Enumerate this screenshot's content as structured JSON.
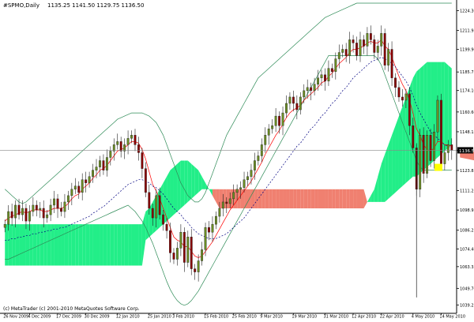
{
  "header": {
    "title": "#SPMO,Daily",
    "ohlc": "1135.25 1141.50 1129.75 1136.50"
  },
  "footer": {
    "copyright": "(c) MetaTrader (c) 2001-2010 MetaQuotes Software Corp."
  },
  "price_label": "1136.50",
  "colors": {
    "bull": "#111111",
    "bear": "#8b0000",
    "body_bull": "#6b8e23",
    "cloud_up": "#22ee88",
    "cloud_down": "#f08070",
    "bands": "#2e8b57",
    "ma_fast": "#ff0000",
    "ma_slow": "#000080",
    "grid": "#888888",
    "highlight": "#ffff00"
  },
  "chart_data": {
    "type": "candlestick",
    "title": "#SPMO,Daily",
    "symbol": "#SPMO",
    "timeframe": "Daily",
    "last_price": 1136.5,
    "y_ticks": [
      1224.3,
      1211.95,
      1199.9,
      1185.75,
      1174.1,
      1160.6,
      1148.15,
      1136.5,
      1123.85,
      1111.25,
      1098.95,
      1086.25,
      1074.4,
      1063.35,
      1049.7,
      1039.25
    ],
    "y_tick_labels": [
      "1224.30",
      "1211.95",
      "1199.90",
      "1185.75",
      "1174.10",
      "1160.60",
      "1148.15",
      "1136.50",
      "1123.85",
      "1111.25",
      "1098.95",
      "1086.25",
      "1074.40",
      "1063.35",
      "1049.70",
      "1039.25"
    ],
    "ylim": [
      1034.0,
      1231.0
    ],
    "x_ticks": [
      {
        "label": "26 Nov 2009",
        "index": 0
      },
      {
        "label": "4 Dec 2009",
        "index": 7
      },
      {
        "label": "17 Dec 2009",
        "index": 15
      },
      {
        "label": "30 Dec 2009",
        "index": 23
      },
      {
        "label": "12 Jan 2010",
        "index": 32
      },
      {
        "label": "25 Jan 2010",
        "index": 41
      },
      {
        "label": "3 Feb 2010",
        "index": 48
      },
      {
        "label": "15 Feb 2010",
        "index": 57
      },
      {
        "label": "25 Feb 2010",
        "index": 65
      },
      {
        "label": "9 Mar 2010",
        "index": 73
      },
      {
        "label": "19 Mar 2010",
        "index": 82
      },
      {
        "label": "31 Mar 2010",
        "index": 91
      },
      {
        "label": "12 Apr 2010",
        "index": 99
      },
      {
        "label": "22 Apr 2010",
        "index": 107
      },
      {
        "label": "4 May 2010",
        "index": 116
      },
      {
        "label": "14 May 2010",
        "index": 124
      }
    ],
    "close": [
      1090,
      1098,
      1094,
      1102,
      1096,
      1100,
      1092,
      1098,
      1102,
      1099,
      1100,
      1094,
      1096,
      1102,
      1106,
      1100,
      1098,
      1104,
      1108,
      1112,
      1114,
      1110,
      1118,
      1116,
      1120,
      1124,
      1126,
      1130,
      1124,
      1132,
      1136,
      1140,
      1142,
      1136,
      1140,
      1144,
      1146,
      1140,
      1135,
      1125,
      1110,
      1100,
      1094,
      1108,
      1096,
      1090,
      1086,
      1072,
      1068,
      1075,
      1085,
      1066,
      1082,
      1062,
      1060,
      1067,
      1074,
      1088,
      1085,
      1090,
      1095,
      1100,
      1104,
      1103,
      1106,
      1110,
      1112,
      1113,
      1118,
      1120,
      1124,
      1130,
      1133,
      1140,
      1146,
      1150,
      1152,
      1158,
      1152,
      1160,
      1166,
      1170,
      1166,
      1162,
      1170,
      1174,
      1176,
      1174,
      1178,
      1182,
      1184,
      1180,
      1188,
      1186,
      1194,
      1198,
      1200,
      1196,
      1206,
      1204,
      1196,
      1206,
      1202,
      1210,
      1206,
      1198,
      1202,
      1210,
      1190,
      1200,
      1182,
      1176,
      1170,
      1168,
      1172,
      1152,
      1138,
      1112,
      1146,
      1122,
      1146,
      1130,
      1148,
      1168,
      1128,
      1135,
      1140,
      1136.5
    ],
    "ma_fast": [
      1092,
      1094,
      1095,
      1096,
      1097,
      1098,
      1097,
      1098,
      1099,
      1099,
      1099,
      1098,
      1098,
      1099,
      1100,
      1100,
      1100,
      1101,
      1103,
      1106,
      1108,
      1109,
      1112,
      1114,
      1116,
      1119,
      1121,
      1124,
      1125,
      1127,
      1130,
      1133,
      1136,
      1137,
      1138,
      1140,
      1142,
      1142,
      1141,
      1137,
      1131,
      1123,
      1115,
      1111,
      1106,
      1100,
      1094,
      1088,
      1082,
      1080,
      1079,
      1076,
      1076,
      1073,
      1070,
      1069,
      1070,
      1073,
      1076,
      1079,
      1083,
      1087,
      1091,
      1095,
      1099,
      1102,
      1105,
      1108,
      1111,
      1114,
      1117,
      1121,
      1125,
      1129,
      1134,
      1138,
      1142,
      1146,
      1149,
      1153,
      1157,
      1160,
      1162,
      1163,
      1165,
      1168,
      1170,
      1172,
      1174,
      1176,
      1179,
      1180,
      1183,
      1185,
      1188,
      1191,
      1193,
      1195,
      1198,
      1200,
      1200,
      1201,
      1202,
      1204,
      1205,
      1204,
      1204,
      1206,
      1202,
      1200,
      1195,
      1189,
      1183,
      1178,
      1174,
      1168,
      1160,
      1150,
      1146,
      1140,
      1137,
      1136,
      1138,
      1142,
      1142,
      1140,
      1140,
      1139
    ],
    "ma_slow": [
      1080,
      1080,
      1081,
      1081,
      1082,
      1082,
      1083,
      1083,
      1084,
      1084,
      1085,
      1085,
      1086,
      1086,
      1087,
      1087,
      1088,
      1088,
      1089,
      1090,
      1091,
      1092,
      1093,
      1094,
      1095,
      1097,
      1098,
      1100,
      1101,
      1103,
      1105,
      1107,
      1109,
      1111,
      1113,
      1115,
      1116,
      1117,
      1118,
      1118,
      1117,
      1116,
      1114,
      1113,
      1111,
      1109,
      1106,
      1103,
      1100,
      1098,
      1096,
      1093,
      1091,
      1088,
      1086,
      1084,
      1083,
      1082,
      1081,
      1081,
      1081,
      1082,
      1083,
      1084,
      1086,
      1088,
      1090,
      1092,
      1094,
      1097,
      1100,
      1103,
      1106,
      1109,
      1112,
      1115,
      1118,
      1121,
      1124,
      1127,
      1130,
      1133,
      1136,
      1139,
      1141,
      1144,
      1147,
      1150,
      1152,
      1155,
      1158,
      1160,
      1163,
      1166,
      1168,
      1171,
      1174,
      1176,
      1179,
      1182,
      1184,
      1186,
      1188,
      1190,
      1192,
      1193,
      1194,
      1195,
      1194,
      1193,
      1191,
      1189,
      1186,
      1183,
      1180,
      1176,
      1171,
      1165,
      1160,
      1156,
      1152,
      1148,
      1146,
      1144,
      1142,
      1140,
      1139,
      1138
    ],
    "band_upper": [
      1112,
      1110,
      1108,
      1106,
      1104,
      1103,
      1104,
      1106,
      1108,
      1110,
      1112,
      1114,
      1116,
      1118,
      1120,
      1122,
      1124,
      1126,
      1128,
      1130,
      1132,
      1134,
      1136,
      1138,
      1140,
      1142,
      1144,
      1146,
      1148,
      1150,
      1152,
      1154,
      1156,
      1157,
      1158,
      1159,
      1160,
      1160,
      1160,
      1160,
      1159,
      1158,
      1156,
      1154,
      1150,
      1146,
      1140,
      1134,
      1128,
      1122,
      1116,
      1112,
      1108,
      1106,
      1104,
      1104,
      1106,
      1110,
      1116,
      1122,
      1128,
      1134,
      1140,
      1146,
      1150,
      1154,
      1158,
      1162,
      1166,
      1170,
      1174,
      1178,
      1182,
      1184,
      1186,
      1188,
      1190,
      1192,
      1194,
      1196,
      1198,
      1200,
      1202,
      1204,
      1206,
      1208,
      1210,
      1212,
      1214,
      1216,
      1218,
      1220,
      1221,
      1222,
      1223,
      1224,
      1225,
      1226,
      1227,
      1228,
      1229,
      1229,
      1229,
      1229,
      1229,
      1229,
      1229,
      1229,
      1229,
      1229,
      1229,
      1229,
      1229,
      1229,
      1229,
      1229,
      1229,
      1229,
      1229,
      1229,
      1229,
      1229,
      1229,
      1229,
      1229,
      1229,
      1229,
      1229
    ],
    "band_lower": [
      1068,
      1068,
      1069,
      1070,
      1071,
      1072,
      1073,
      1074,
      1075,
      1076,
      1077,
      1078,
      1079,
      1080,
      1081,
      1082,
      1083,
      1084,
      1085,
      1086,
      1087,
      1088,
      1089,
      1090,
      1091,
      1092,
      1093,
      1094,
      1095,
      1096,
      1097,
      1098,
      1099,
      1100,
      1101,
      1102,
      1100,
      1098,
      1095,
      1092,
      1088,
      1083,
      1078,
      1072,
      1066,
      1060,
      1054,
      1049,
      1045,
      1042,
      1040,
      1039,
      1040,
      1042,
      1045,
      1048,
      1052,
      1056,
      1060,
      1064,
      1068,
      1072,
      1076,
      1080,
      1084,
      1088,
      1092,
      1096,
      1100,
      1104,
      1108,
      1112,
      1116,
      1120,
      1124,
      1128,
      1132,
      1136,
      1140,
      1144,
      1148,
      1152,
      1156,
      1160,
      1164,
      1168,
      1172,
      1176,
      1180,
      1184,
      1188,
      1192,
      1196,
      1196,
      1196,
      1196,
      1196,
      1196,
      1196,
      1196,
      1196,
      1196,
      1196,
      1196,
      1196,
      1196,
      1194,
      1190,
      1184,
      1178,
      1172,
      1166,
      1160,
      1154,
      1148,
      1142,
      1136,
      1130,
      1126,
      1124,
      1124,
      1124,
      1124,
      1124,
      1124,
      1124,
      1124,
      1124
    ],
    "cloud_top": [
      1090,
      1090,
      1090,
      1090,
      1090,
      1090,
      1090,
      1090,
      1090,
      1090,
      1090,
      1090,
      1090,
      1090,
      1090,
      1090,
      1090,
      1090,
      1090,
      1090,
      1090,
      1090,
      1090,
      1090,
      1090,
      1090,
      1090,
      1090,
      1090,
      1090,
      1090,
      1090,
      1090,
      1090,
      1090,
      1090,
      1090,
      1090,
      1090,
      1090,
      1098,
      1100,
      1104,
      1108,
      1112,
      1116,
      1120,
      1124,
      1126,
      1128,
      1130,
      1130,
      1130,
      1128,
      1126,
      1124,
      1120,
      1116,
      1112,
      1108,
      1104,
      1100,
      1100,
      1100,
      1100,
      1100,
      1100,
      1100,
      1100,
      1100,
      1100,
      1100,
      1100,
      1100,
      1100,
      1100,
      1100,
      1100,
      1100,
      1100,
      1100,
      1100,
      1100,
      1100,
      1100,
      1100,
      1100,
      1100,
      1100,
      1100,
      1100,
      1100,
      1100,
      1100,
      1100,
      1100,
      1100,
      1100,
      1100,
      1100,
      1100,
      1100,
      1100,
      1104,
      1108,
      1112,
      1120,
      1128,
      1134,
      1140,
      1146,
      1152,
      1158,
      1164,
      1170,
      1176,
      1182,
      1186,
      1188,
      1190,
      1192,
      1192,
      1192,
      1192,
      1192,
      1192,
      1190,
      1188
    ],
    "cloud_bottom": [
      1064,
      1064,
      1064,
      1064,
      1064,
      1064,
      1064,
      1064,
      1064,
      1064,
      1064,
      1064,
      1064,
      1064,
      1064,
      1064,
      1064,
      1064,
      1064,
      1064,
      1064,
      1064,
      1064,
      1064,
      1064,
      1064,
      1064,
      1064,
      1064,
      1064,
      1064,
      1064,
      1064,
      1064,
      1064,
      1064,
      1064,
      1064,
      1064,
      1064,
      1080,
      1082,
      1084,
      1086,
      1088,
      1090,
      1092,
      1094,
      1096,
      1098,
      1100,
      1102,
      1104,
      1106,
      1108,
      1110,
      1112,
      1112,
      1112,
      1112,
      1112,
      1112,
      1112,
      1112,
      1112,
      1112,
      1112,
      1112,
      1112,
      1112,
      1112,
      1112,
      1112,
      1112,
      1112,
      1112,
      1112,
      1112,
      1112,
      1112,
      1112,
      1112,
      1112,
      1112,
      1112,
      1112,
      1112,
      1112,
      1112,
      1112,
      1112,
      1112,
      1112,
      1112,
      1112,
      1112,
      1112,
      1112,
      1112,
      1112,
      1112,
      1112,
      1112,
      1104,
      1104,
      1104,
      1104,
      1104,
      1104,
      1106,
      1108,
      1110,
      1112,
      1114,
      1116,
      1118,
      1120,
      1120,
      1122,
      1124,
      1126,
      1128,
      1130,
      1132,
      1134,
      1136,
      1138,
      1140
    ]
  }
}
